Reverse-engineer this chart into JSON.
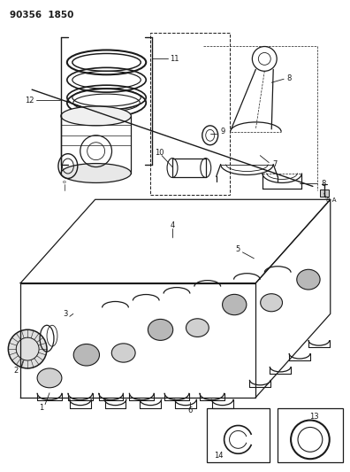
{
  "title": "90356  1850",
  "bg_color": "#ffffff",
  "lc": "#1a1a1a",
  "fig_width": 3.96,
  "fig_height": 5.33,
  "dpi": 100
}
